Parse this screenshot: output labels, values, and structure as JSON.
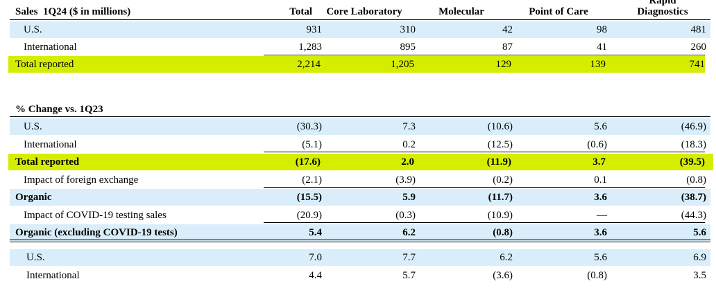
{
  "section1": {
    "title": "Sales  1Q24 ($ in millions)",
    "columns": [
      "Total",
      "Core Laboratory",
      "Molecular",
      "Point of Care",
      "Rapid",
      "Diagnostics"
    ],
    "rows": [
      {
        "label": "U.S.",
        "values": [
          "931",
          "310",
          "42",
          "98",
          "481"
        ]
      },
      {
        "label": "International",
        "values": [
          "1,283",
          "895",
          "87",
          "41",
          "260"
        ]
      },
      {
        "label": "Total reported",
        "values": [
          "2,214",
          "1,205",
          "129",
          "139",
          "741"
        ]
      }
    ]
  },
  "section2": {
    "title": "% Change vs. 1Q23",
    "rows": [
      {
        "label": "U.S.",
        "values": [
          "(30.3)",
          "7.3",
          "(10.6)",
          "5.6",
          "(46.9)"
        ]
      },
      {
        "label": "International",
        "values": [
          "(5.1)",
          "0.2",
          "(12.5)",
          "(0.6)",
          "(18.3)"
        ]
      },
      {
        "label": "Total reported",
        "values": [
          "(17.6)",
          "2.0",
          "(11.9)",
          "3.7",
          "(39.5)"
        ]
      },
      {
        "label": "Impact of foreign exchange",
        "values": [
          "(2.1)",
          "(3.9)",
          "(0.2)",
          "0.1",
          "(0.8)"
        ]
      },
      {
        "label": "Organic",
        "values": [
          "(15.5)",
          "5.9",
          "(11.7)",
          "3.6",
          "(38.7)"
        ]
      },
      {
        "label": "Impact of COVID-19 testing sales",
        "values": [
          "(20.9)",
          "(0.3)",
          "(10.9)",
          "—",
          "(44.3)"
        ]
      },
      {
        "label": "Organic (excluding COVID-19 tests)",
        "values": [
          "5.4",
          "6.2",
          "(0.8)",
          "3.6",
          "5.6"
        ]
      },
      {
        "label": "U.S.",
        "values": [
          "7.0",
          "7.7",
          "6.2",
          "5.6",
          "6.9"
        ]
      },
      {
        "label": "International",
        "values": [
          "4.4",
          "5.7",
          "(3.6)",
          "(0.8)",
          "3.5"
        ]
      }
    ]
  },
  "colors": {
    "highlight_green": "#d5ee00",
    "row_blue": "#d9eefa"
  }
}
